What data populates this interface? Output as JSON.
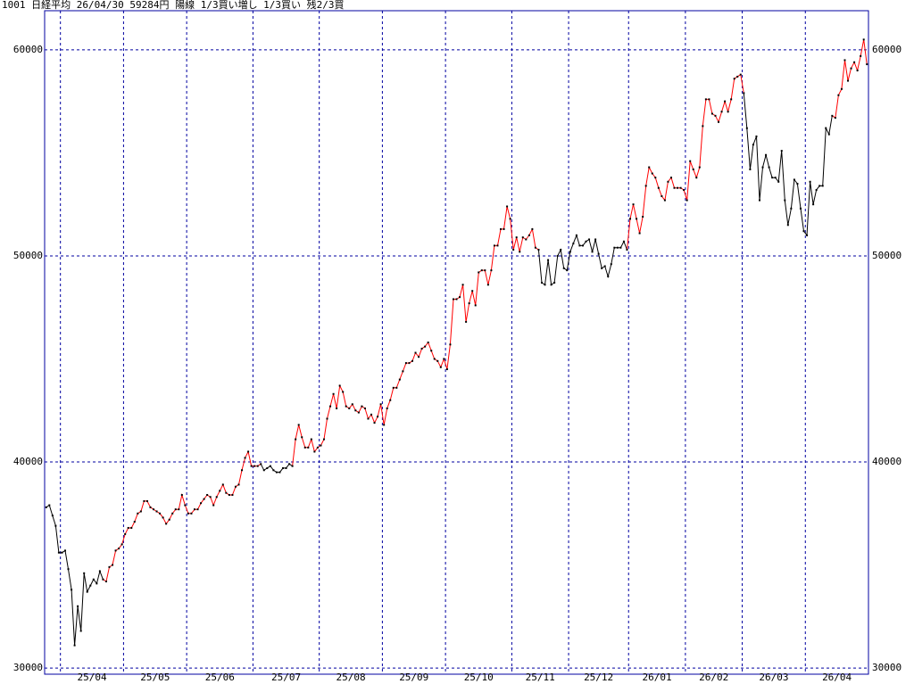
{
  "chart_data": {
    "type": "line",
    "title": "1001 日経平均 26/04/30 59284円 陽線 1/3買い増し 1/3買い 残2/3買",
    "series": [
      {
        "name": "1001 日経平均",
        "color": "#000000",
        "up_color": "#ff0000",
        "up_ranges": [
          [
            19,
            68
          ],
          [
            79,
            156
          ],
          [
            185,
            221
          ],
          [
            250,
            260
          ]
        ],
        "values": [
          37800,
          37900,
          37400,
          36900,
          35600,
          35600,
          35700,
          34800,
          33800,
          31100,
          33000,
          31800,
          34600,
          33700,
          34000,
          34300,
          34100,
          34700,
          34300,
          34200,
          34900,
          35000,
          35700,
          35800,
          36000,
          36500,
          36800,
          36800,
          37100,
          37500,
          37600,
          38100,
          38100,
          37800,
          37700,
          37600,
          37500,
          37300,
          37000,
          37200,
          37500,
          37700,
          37700,
          38400,
          37900,
          37500,
          37500,
          37700,
          37700,
          38000,
          38200,
          38400,
          38300,
          37900,
          38300,
          38600,
          38900,
          38500,
          38400,
          38400,
          38800,
          38900,
          39600,
          40200,
          40500,
          39800,
          39800,
          39800,
          39900,
          39600,
          39700,
          39800,
          39600,
          39500,
          39500,
          39700,
          39700,
          39900,
          39800,
          41100,
          41800,
          41200,
          40700,
          40700,
          41100,
          40500,
          40700,
          40800,
          41100,
          42100,
          42700,
          43300,
          42600,
          43700,
          43400,
          42700,
          42600,
          42800,
          42500,
          42400,
          42700,
          42600,
          42100,
          42300,
          41900,
          42200,
          42800,
          41800,
          42600,
          43000,
          43600,
          43600,
          44000,
          44400,
          44800,
          44800,
          44900,
          45300,
          45100,
          45500,
          45600,
          45800,
          45400,
          45000,
          44900,
          44600,
          45000,
          44500,
          45700,
          47900,
          47900,
          48000,
          48600,
          46800,
          47700,
          48300,
          47600,
          49200,
          49300,
          49300,
          48600,
          49300,
          50500,
          50500,
          51300,
          51300,
          52400,
          51800,
          50300,
          50900,
          50200,
          50900,
          50800,
          51000,
          51300,
          50400,
          50300,
          48700,
          48600,
          49800,
          48600,
          48700,
          50000,
          50300,
          49400,
          49300,
          50200,
          50600,
          51000,
          50500,
          50500,
          50700,
          50800,
          50200,
          50800,
          50100,
          49400,
          49500,
          49000,
          49600,
          50400,
          50400,
          50400,
          50700,
          50300,
          51800,
          52500,
          51800,
          51100,
          51900,
          53400,
          54300,
          54000,
          53800,
          53300,
          52900,
          52700,
          53600,
          53800,
          53300,
          53300,
          53300,
          53200,
          52700,
          54600,
          54200,
          53800,
          54300,
          56300,
          57600,
          57600,
          56900,
          56800,
          56500,
          57000,
          57500,
          57000,
          57600,
          58600,
          58700,
          58800,
          57900,
          56200,
          54200,
          55400,
          55800,
          52700,
          54300,
          54900,
          54300,
          53800,
          53800,
          53600,
          55100,
          52700,
          51500,
          52300,
          53700,
          53500,
          52300,
          51200,
          51000,
          53600,
          52500,
          53200,
          53400,
          53400,
          56200,
          55900,
          56800,
          56700,
          57800,
          58100,
          59500,
          58500,
          59100,
          59400,
          59000,
          59700,
          60500,
          59300
        ]
      }
    ],
    "xlim": [
      -0.5,
      260.5
    ],
    "xgrid": [
      4.5,
      24.5,
      44.5,
      65.5,
      86.5,
      106.5,
      126.5,
      147.5,
      165.5,
      184.5,
      202.5,
      220.5,
      240.5
    ],
    "xticks": [
      {
        "value": 14.5,
        "label": "25/04"
      },
      {
        "value": 34.5,
        "label": "25/05"
      },
      {
        "value": 55,
        "label": "25/06"
      },
      {
        "value": 76,
        "label": "25/07"
      },
      {
        "value": 96.5,
        "label": "25/08"
      },
      {
        "value": 116.5,
        "label": "25/09"
      },
      {
        "value": 137,
        "label": "25/10"
      },
      {
        "value": 156.5,
        "label": "25/11"
      },
      {
        "value": 175,
        "label": "25/12"
      },
      {
        "value": 193.5,
        "label": "26/01"
      },
      {
        "value": 211.5,
        "label": "26/02"
      },
      {
        "value": 230.5,
        "label": "26/03"
      },
      {
        "value": 250.5,
        "label": "26/04"
      }
    ],
    "ylim": [
      29700,
      61900
    ],
    "yticks": [
      30000,
      40000,
      50000,
      60000
    ],
    "grid": true
  }
}
